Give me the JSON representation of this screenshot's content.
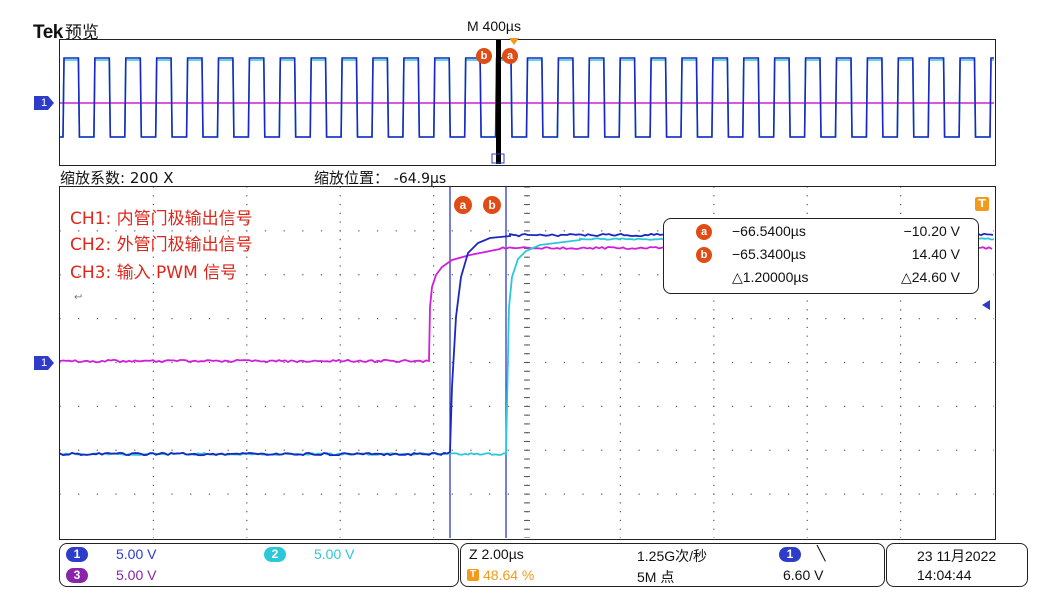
{
  "brand": {
    "logo": "Tek",
    "mode": "预览"
  },
  "header": {
    "timebase": "M 400µs"
  },
  "zoom": {
    "factor_label": "缩放系数: 200 X",
    "position_label": "缩放位置：",
    "position_value": "-64.9µs"
  },
  "labels": {
    "ch1": "CH1:  内管门极输出信号",
    "ch2": "CH2:  外管门极输出信号",
    "ch3": "CH3:  输入 PWM 信号",
    "marker": "↩"
  },
  "cursors": {
    "a_label": "a",
    "b_label": "b",
    "a_time": "−66.5400µs",
    "a_value": "−10.20 V",
    "b_time": "−65.3400µs",
    "b_value": "14.40 V",
    "delta_time": "△1.20000µs",
    "delta_value": "△24.60 V"
  },
  "channels": [
    {
      "num": "1",
      "scale": "5.00 V",
      "color": "#2d3cc9"
    },
    {
      "num": "2",
      "scale": "5.00 V",
      "color": "#2cc8d8"
    },
    {
      "num": "3",
      "scale": "5.00 V",
      "color": "#8a24a8"
    }
  ],
  "acquisition": {
    "zoom_time": "Z 2.00µs",
    "trigger_pos": "48.64 %",
    "sample_rate": "1.25G次/秒",
    "record_length": "5M 点",
    "trigger_source": "1",
    "trigger_slope": "╲",
    "trigger_level": "6.60 V"
  },
  "datetime": {
    "date": "23 11月2022",
    "time": "14:04:44"
  },
  "colors": {
    "ch1": "#2d3cc9",
    "ch2": "#2cc8d8",
    "ch3": "#d01fd8",
    "accent": "#e04c16",
    "trigger": "#f39a1e"
  },
  "icons": {
    "ch1_marker": "channel-1-ground-marker",
    "trigger": "trigger-t-icon",
    "cursor_a": "cursor-a-icon",
    "cursor_b": "cursor-b-icon"
  }
}
